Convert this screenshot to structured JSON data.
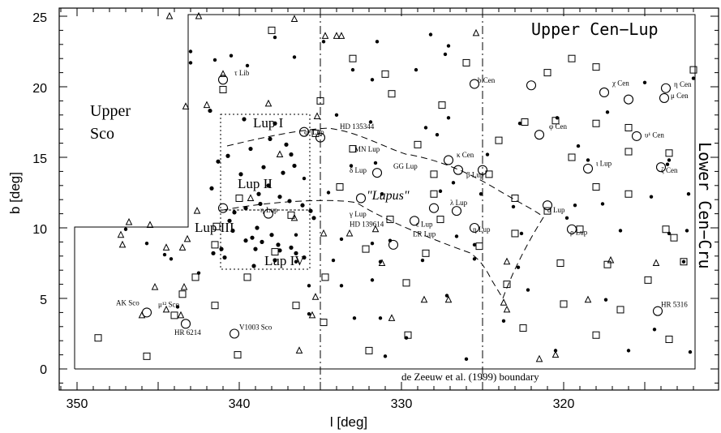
{
  "chart_data": {
    "type": "scatter",
    "xlabel": "l [deg]",
    "ylabel": "b [deg]",
    "xlim": [
      352,
      311
    ],
    "ylim": [
      -1.5,
      25.5
    ],
    "x_ticks": [
      "350",
      "340",
      "330",
      "320"
    ],
    "y_ticks": [
      "0",
      "5",
      "10",
      "15",
      "20",
      "25"
    ],
    "grid": false,
    "regions": [
      "Upper Sco",
      "Upper Cen−Lup",
      "Lower Cen−Cru"
    ],
    "clouds": [
      "Lup I",
      "Lup II",
      "Lup III",
      "Lup IV"
    ],
    "group_label": "\"Lupus\"",
    "boundary_label": "de Zeeuw et al. (1999) boundary",
    "stars": [
      {
        "name": "τ Lib",
        "l": 340.3,
        "b": 20.8
      },
      {
        "name": "φ² Lup",
        "l": 336.0,
        "b": 16.6
      },
      {
        "name": "HD 135344",
        "l": 333.8,
        "b": 17.0
      },
      {
        "name": "b Cen",
        "l": 325.3,
        "b": 20.3
      },
      {
        "name": "χ Cen",
        "l": 317.0,
        "b": 20.1
      },
      {
        "name": "η Cen",
        "l": 313.2,
        "b": 20.0
      },
      {
        "name": "μ Cen",
        "l": 313.4,
        "b": 19.2
      },
      {
        "name": "φ Cen",
        "l": 320.9,
        "b": 17.0
      },
      {
        "name": "υ¹ Cen",
        "l": 315.0,
        "b": 16.4
      },
      {
        "name": "κ Cen",
        "l": 326.6,
        "b": 15.0
      },
      {
        "name": "MN Lup",
        "l": 332.9,
        "b": 15.4
      },
      {
        "name": "GG Lup",
        "l": 330.5,
        "b": 14.2
      },
      {
        "name": "δ Lup",
        "l": 333.2,
        "b": 13.9
      },
      {
        "name": "β Lup",
        "l": 326.0,
        "b": 13.6
      },
      {
        "name": "ι Lup",
        "l": 318.0,
        "b": 14.4
      },
      {
        "name": "ζ Cen",
        "l": 314.0,
        "b": 13.9
      },
      {
        "name": "α Lup",
        "l": 321.0,
        "b": 11.1
      },
      {
        "name": "λ Lup",
        "l": 327.0,
        "b": 11.6
      },
      {
        "name": "η Lup",
        "l": 338.7,
        "b": 11.1
      },
      {
        "name": "γ Lup",
        "l": 333.2,
        "b": 10.8
      },
      {
        "name": "HD 139614",
        "l": 333.2,
        "b": 10.1
      },
      {
        "name": "ε Lup",
        "l": 329.1,
        "b": 10.1
      },
      {
        "name": "LR Lup",
        "l": 329.3,
        "b": 9.4
      },
      {
        "name": "η Lup",
        "l": 325.6,
        "b": 9.7
      },
      {
        "name": "ρ Lup",
        "l": 319.6,
        "b": 9.5
      },
      {
        "name": "AK Sco",
        "l": 347.6,
        "b": 4.5
      },
      {
        "name": "μ¹² Sco",
        "l": 345.0,
        "b": 4.4
      },
      {
        "name": "HR 6214",
        "l": 344.0,
        "b": 2.4
      },
      {
        "name": "V1003 Sco",
        "l": 340.0,
        "b": 2.8
      },
      {
        "name": "HR 5316",
        "l": 314.0,
        "b": 4.4
      }
    ],
    "circles": [
      [
        341,
        20.5
      ],
      [
        336,
        16.8
      ],
      [
        335,
        16.4
      ],
      [
        325.5,
        20.2
      ],
      [
        322,
        20.1
      ],
      [
        317.5,
        19.6
      ],
      [
        316,
        19.1
      ],
      [
        313.7,
        19.9
      ],
      [
        313.8,
        19.2
      ],
      [
        321.5,
        16.6
      ],
      [
        315.5,
        16.5
      ],
      [
        327.1,
        14.8
      ],
      [
        331.5,
        13.9
      ],
      [
        326.5,
        14.1
      ],
      [
        325,
        14.1
      ],
      [
        318.5,
        14.2
      ],
      [
        314,
        14.3
      ],
      [
        321,
        11.6
      ],
      [
        328,
        11.4
      ],
      [
        326.6,
        11.2
      ],
      [
        332.5,
        12.1
      ],
      [
        338.2,
        11.0
      ],
      [
        341,
        11.4
      ],
      [
        329.2,
        10.5
      ],
      [
        325.5,
        10.0
      ],
      [
        330.5,
        8.8
      ],
      [
        319.5,
        9.9
      ],
      [
        345.7,
        4.0
      ],
      [
        343.3,
        3.2
      ],
      [
        340.3,
        2.5
      ],
      [
        314.2,
        4.1
      ]
    ],
    "squares": [
      [
        338,
        24
      ],
      [
        333,
        22
      ],
      [
        331,
        20.9
      ],
      [
        326,
        21.7
      ],
      [
        321,
        21
      ],
      [
        319.5,
        22
      ],
      [
        318,
        21.4
      ],
      [
        312,
        21.2
      ],
      [
        341,
        19.8
      ],
      [
        335,
        19
      ],
      [
        330.6,
        19.5
      ],
      [
        327.5,
        18.7
      ],
      [
        322.4,
        17.5
      ],
      [
        320.5,
        17.6
      ],
      [
        318,
        17.4
      ],
      [
        316,
        17.1
      ],
      [
        335.3,
        16.7
      ],
      [
        333,
        15.6
      ],
      [
        329,
        15.9
      ],
      [
        324,
        16.2
      ],
      [
        319.5,
        15
      ],
      [
        316,
        15.4
      ],
      [
        313.5,
        15.3
      ],
      [
        328,
        13.8
      ],
      [
        324.6,
        13.8
      ],
      [
        318,
        12.9
      ],
      [
        316,
        12.4
      ],
      [
        321,
        11.2
      ],
      [
        333.8,
        12.9
      ],
      [
        328,
        12.4
      ],
      [
        323,
        12.1
      ],
      [
        340,
        12.1
      ],
      [
        336.8,
        10.9
      ],
      [
        341.4,
        10.1
      ],
      [
        330.7,
        10.6
      ],
      [
        327.6,
        10.6
      ],
      [
        323,
        9.6
      ],
      [
        319,
        9.9
      ],
      [
        313.7,
        9.9
      ],
      [
        313.2,
        9.3
      ],
      [
        341.5,
        8.8
      ],
      [
        337.8,
        8.3
      ],
      [
        332.2,
        8.5
      ],
      [
        328.5,
        8.2
      ],
      [
        325.2,
        8.7
      ],
      [
        320.2,
        7.5
      ],
      [
        317.3,
        7.4
      ],
      [
        312.6,
        7.6
      ],
      [
        342.7,
        6.5
      ],
      [
        339.5,
        6.5
      ],
      [
        334.7,
        6.5
      ],
      [
        329.7,
        6.1
      ],
      [
        323.5,
        6.0
      ],
      [
        314.8,
        6.3
      ],
      [
        343.5,
        5.3
      ],
      [
        341.5,
        4.5
      ],
      [
        336.5,
        4.5
      ],
      [
        320,
        4.6
      ],
      [
        316.5,
        4.2
      ],
      [
        344,
        3.8
      ],
      [
        334.8,
        3.3
      ],
      [
        329.6,
        2.4
      ],
      [
        322.5,
        2.9
      ],
      [
        318,
        2.4
      ],
      [
        313.5,
        2.1
      ],
      [
        348.7,
        2.2
      ],
      [
        345.7,
        0.9
      ],
      [
        340.1,
        1.0
      ],
      [
        332,
        1.3
      ]
    ],
    "triangles": [
      [
        344.3,
        25
      ],
      [
        342.5,
        25
      ],
      [
        336.6,
        24.8
      ],
      [
        334.7,
        23.6
      ],
      [
        334,
        23.6
      ],
      [
        333.7,
        23.6
      ],
      [
        325.4,
        23.8
      ],
      [
        341,
        20.9
      ],
      [
        342,
        18.7
      ],
      [
        338.2,
        18.8
      ],
      [
        343.3,
        18.6
      ],
      [
        335.2,
        17.9
      ],
      [
        337.5,
        15.2
      ],
      [
        339.3,
        12.1
      ],
      [
        342.6,
        11.2
      ],
      [
        336.6,
        10.7
      ],
      [
        346.8,
        10.4
      ],
      [
        345.5,
        10.2
      ],
      [
        347.3,
        9.5
      ],
      [
        343.2,
        9.2
      ],
      [
        331.6,
        9.9
      ],
      [
        334.8,
        9.6
      ],
      [
        333.2,
        9.6
      ],
      [
        347.2,
        8.8
      ],
      [
        344.5,
        8.6
      ],
      [
        343.5,
        8.6
      ],
      [
        331.2,
        7.5
      ],
      [
        323.5,
        7.6
      ],
      [
        317.1,
        7.7
      ],
      [
        314.3,
        7.5
      ],
      [
        345.2,
        5.8
      ],
      [
        343.4,
        5.8
      ],
      [
        335.3,
        5.1
      ],
      [
        328.6,
        4.9
      ],
      [
        327.1,
        4.9
      ],
      [
        323.7,
        4.7
      ],
      [
        318.5,
        4.9
      ],
      [
        344.5,
        4.2
      ],
      [
        346,
        3.8
      ],
      [
        343.6,
        3.8
      ],
      [
        335.5,
        3.8
      ],
      [
        330.6,
        3.6
      ],
      [
        323.5,
        4.2
      ],
      [
        336.3,
        1.3
      ],
      [
        321.5,
        0.7
      ],
      [
        320.5,
        1.0
      ]
    ],
    "dots": [
      [
        343,
        22.5
      ],
      [
        343,
        21.7
      ],
      [
        341.5,
        21.9
      ],
      [
        340.5,
        22.2
      ],
      [
        339.5,
        21.5
      ],
      [
        337.8,
        23.5
      ],
      [
        336.6,
        22.1
      ],
      [
        334.8,
        23.2
      ],
      [
        333,
        21.2
      ],
      [
        331.5,
        23.2
      ],
      [
        328.2,
        23.7
      ],
      [
        327.1,
        22.9
      ],
      [
        331.8,
        20.5
      ],
      [
        329.1,
        21.2
      ],
      [
        327.3,
        22.3
      ],
      [
        315,
        20.3
      ],
      [
        312,
        20.6
      ],
      [
        334,
        18
      ],
      [
        331.9,
        17.5
      ],
      [
        328.5,
        17.1
      ],
      [
        327.1,
        17.8
      ],
      [
        322.7,
        17.4
      ],
      [
        320.4,
        17.8
      ],
      [
        317.3,
        18.2
      ],
      [
        336,
        13.5
      ],
      [
        333.1,
        14.4
      ],
      [
        331.6,
        14.6
      ],
      [
        327.8,
        16.6
      ],
      [
        326.8,
        13.2
      ],
      [
        324.7,
        15.2
      ],
      [
        319.1,
        15.8
      ],
      [
        318.5,
        14.8
      ],
      [
        313.5,
        14.8
      ],
      [
        313.6,
        14.5
      ],
      [
        312.3,
        12.4
      ],
      [
        334.5,
        12.5
      ],
      [
        331.2,
        12.4
      ],
      [
        327.6,
        12.6
      ],
      [
        325.1,
        12.4
      ],
      [
        323.1,
        11.5
      ],
      [
        319.3,
        11.6
      ],
      [
        317.6,
        11.7
      ],
      [
        314.6,
        12.2
      ],
      [
        336.5,
        9.5
      ],
      [
        333.7,
        9.2
      ],
      [
        331.8,
        8.9
      ],
      [
        330.7,
        9.1
      ],
      [
        326.6,
        9.4
      ],
      [
        325.5,
        8.8
      ],
      [
        322.6,
        9.6
      ],
      [
        319.8,
        10.7
      ],
      [
        316.5,
        9.8
      ],
      [
        313.5,
        9.6
      ],
      [
        312.4,
        9.8
      ],
      [
        344.2,
        7.8
      ],
      [
        336.5,
        7.6
      ],
      [
        334.2,
        7.7
      ],
      [
        331.3,
        7.6
      ],
      [
        328.7,
        7.7
      ],
      [
        325.5,
        7.8
      ],
      [
        322.8,
        7.2
      ],
      [
        312.6,
        7.6
      ],
      [
        347,
        9.9
      ],
      [
        345.7,
        8.9
      ],
      [
        344.6,
        8.1
      ],
      [
        342.5,
        6.8
      ],
      [
        335.7,
        5.9
      ],
      [
        333.7,
        5.9
      ],
      [
        331.8,
        6.3
      ],
      [
        327.2,
        5.2
      ],
      [
        322.2,
        5.6
      ],
      [
        317.4,
        4.9
      ],
      [
        335.7,
        3.9
      ],
      [
        332.9,
        3.6
      ],
      [
        331.3,
        3.6
      ],
      [
        329.7,
        2.2
      ],
      [
        323.7,
        3.4
      ],
      [
        314.4,
        2.8
      ],
      [
        343.8,
        4.4
      ],
      [
        331,
        0.9
      ],
      [
        326,
        0.7
      ],
      [
        320.5,
        1.3
      ],
      [
        316,
        1.3
      ],
      [
        312.2,
        1.2
      ]
    ],
    "cluster_dots": [
      [
        338.5,
        14.3
      ],
      [
        339.9,
        13.8
      ],
      [
        338.2,
        13.0
      ],
      [
        338.8,
        12.4
      ],
      [
        338.7,
        11.7
      ],
      [
        339.6,
        11.4
      ],
      [
        340.6,
        10.5
      ],
      [
        338.9,
        10.0
      ],
      [
        338.0,
        9.5
      ],
      [
        339.6,
        9.1
      ],
      [
        337.6,
        8.8
      ],
      [
        341.1,
        8.5
      ],
      [
        340.4,
        9.8
      ],
      [
        339.0,
        8.5
      ],
      [
        341.7,
        12.8
      ],
      [
        337.5,
        12.2
      ],
      [
        336.9,
        11.9
      ],
      [
        336.1,
        11.6
      ],
      [
        335.6,
        11.2
      ],
      [
        335.4,
        10.7
      ],
      [
        339.7,
        17.7
      ],
      [
        341.8,
        18.3
      ],
      [
        337.8,
        17.4
      ],
      [
        338.1,
        16.3
      ],
      [
        337.1,
        15.9
      ],
      [
        339.3,
        15.6
      ],
      [
        336.8,
        15.2
      ],
      [
        340.7,
        15.1
      ],
      [
        341.3,
        14.7
      ],
      [
        336.6,
        14.4
      ],
      [
        337.3,
        13.9
      ],
      [
        337.5,
        8.4
      ],
      [
        337.8,
        7.7
      ],
      [
        340.9,
        7.9
      ],
      [
        341.6,
        8.2
      ],
      [
        339.1,
        7.3
      ],
      [
        336.5,
        8.2
      ],
      [
        336.0,
        7.9
      ],
      [
        340.3,
        11.1
      ],
      [
        339.2,
        9.3
      ],
      [
        338.6,
        9.0
      ],
      [
        336.8,
        8.6
      ]
    ]
  }
}
